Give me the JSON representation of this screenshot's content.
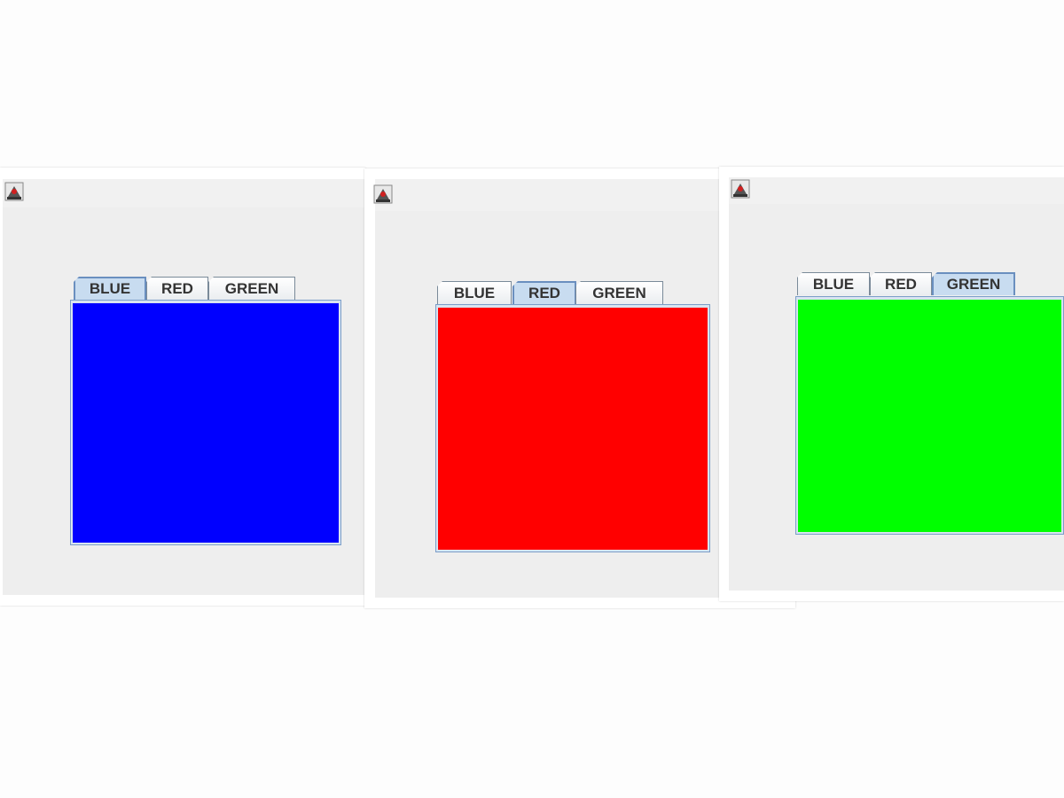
{
  "windows": [
    {
      "name": "blue-window",
      "tabs": [
        "BLUE",
        "RED",
        "GREEN"
      ],
      "selected_tab": "BLUE",
      "panel_color": "#0000ff"
    },
    {
      "name": "red-window",
      "tabs": [
        "BLUE",
        "RED",
        "GREEN"
      ],
      "selected_tab": "RED",
      "panel_color": "#ff0000"
    },
    {
      "name": "green-window",
      "tabs": [
        "BLUE",
        "RED",
        "GREEN"
      ],
      "selected_tab": "GREEN",
      "panel_color": "#00ff00"
    }
  ],
  "icons": {
    "window_icon": "java-coffee-cup-icon"
  },
  "colors": {
    "selected_tab_bg": "#c8dcf0",
    "window_bg": "#eeeeee"
  }
}
